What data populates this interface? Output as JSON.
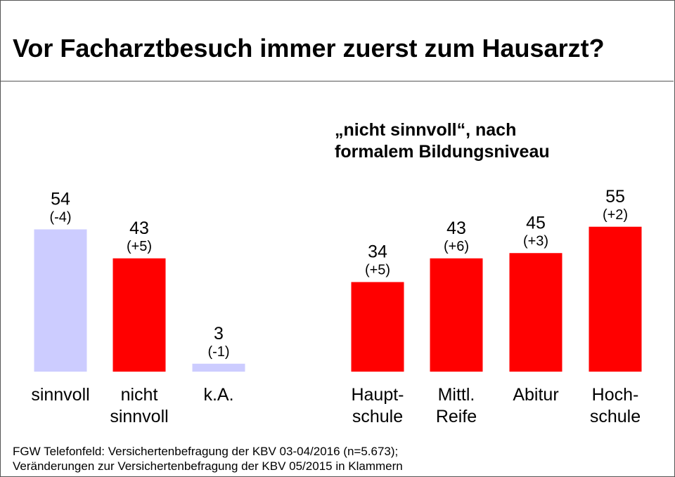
{
  "title": "Vor Facharztbesuch immer zuerst zum Hausarzt?",
  "subtitle_line1": "„nicht sinnvoll“, nach",
  "subtitle_line2": "formalem Bildungsniveau",
  "footer_line1": "FGW Telefonfeld: Versichertenbefragung der KBV 03-04/2016 (n=5.673);",
  "footer_line2": "Veränderungen zur Versichertenbefragung der KBV 05/2015 in Klammern",
  "chart_data": {
    "type": "bar",
    "ylim": [
      0,
      55
    ],
    "bars": [
      {
        "category": [
          "sinnvoll"
        ],
        "value": 54,
        "change": "(-4)",
        "color": "#ccccff"
      },
      {
        "category": [
          "nicht",
          "sinnvoll"
        ],
        "value": 43,
        "change": "(+5)",
        "color": "#ff0000"
      },
      {
        "category": [
          "k.A."
        ],
        "value": 3,
        "change": "(-1)",
        "color": "#ccccff"
      },
      {
        "category": [
          "Haupt-",
          "schule"
        ],
        "value": 34,
        "change": "(+5)",
        "color": "#ff0000"
      },
      {
        "category": [
          "Mittl.",
          "Reife"
        ],
        "value": 43,
        "change": "(+6)",
        "color": "#ff0000"
      },
      {
        "category": [
          "Abitur"
        ],
        "value": 45,
        "change": "(+3)",
        "color": "#ff0000"
      },
      {
        "category": [
          "Hoch-",
          "schule"
        ],
        "value": 55,
        "change": "(+2)",
        "color": "#ff0000"
      }
    ]
  }
}
